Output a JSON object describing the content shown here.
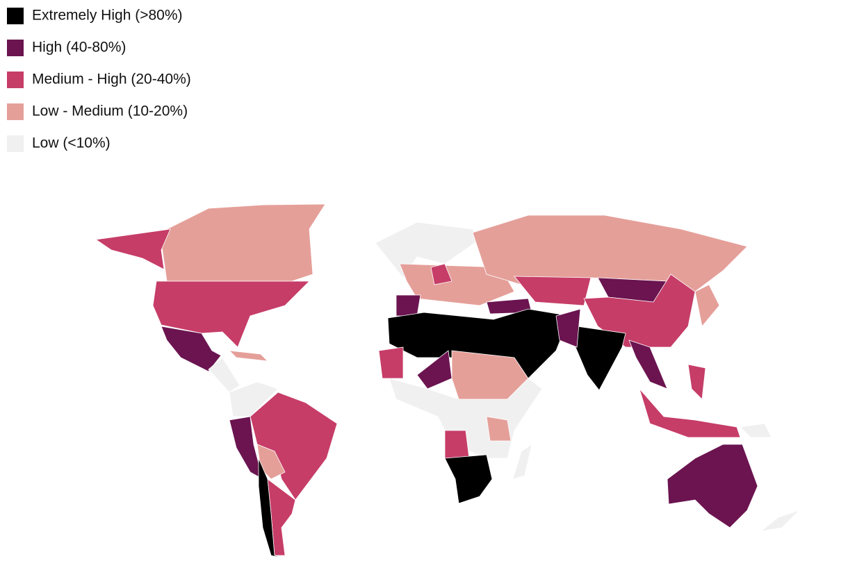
{
  "legend": {
    "items": [
      {
        "label": "Extremely High (>80%)",
        "color": "#000000"
      },
      {
        "label": "High (40-80%)",
        "color": "#6b1450"
      },
      {
        "label": "Medium - High (20-40%)",
        "color": "#c63d68"
      },
      {
        "label": "Low - Medium (10-20%)",
        "color": "#e59f99"
      },
      {
        "label": "Low (<10%)",
        "color": "#f0f0f0"
      }
    ]
  }
}
